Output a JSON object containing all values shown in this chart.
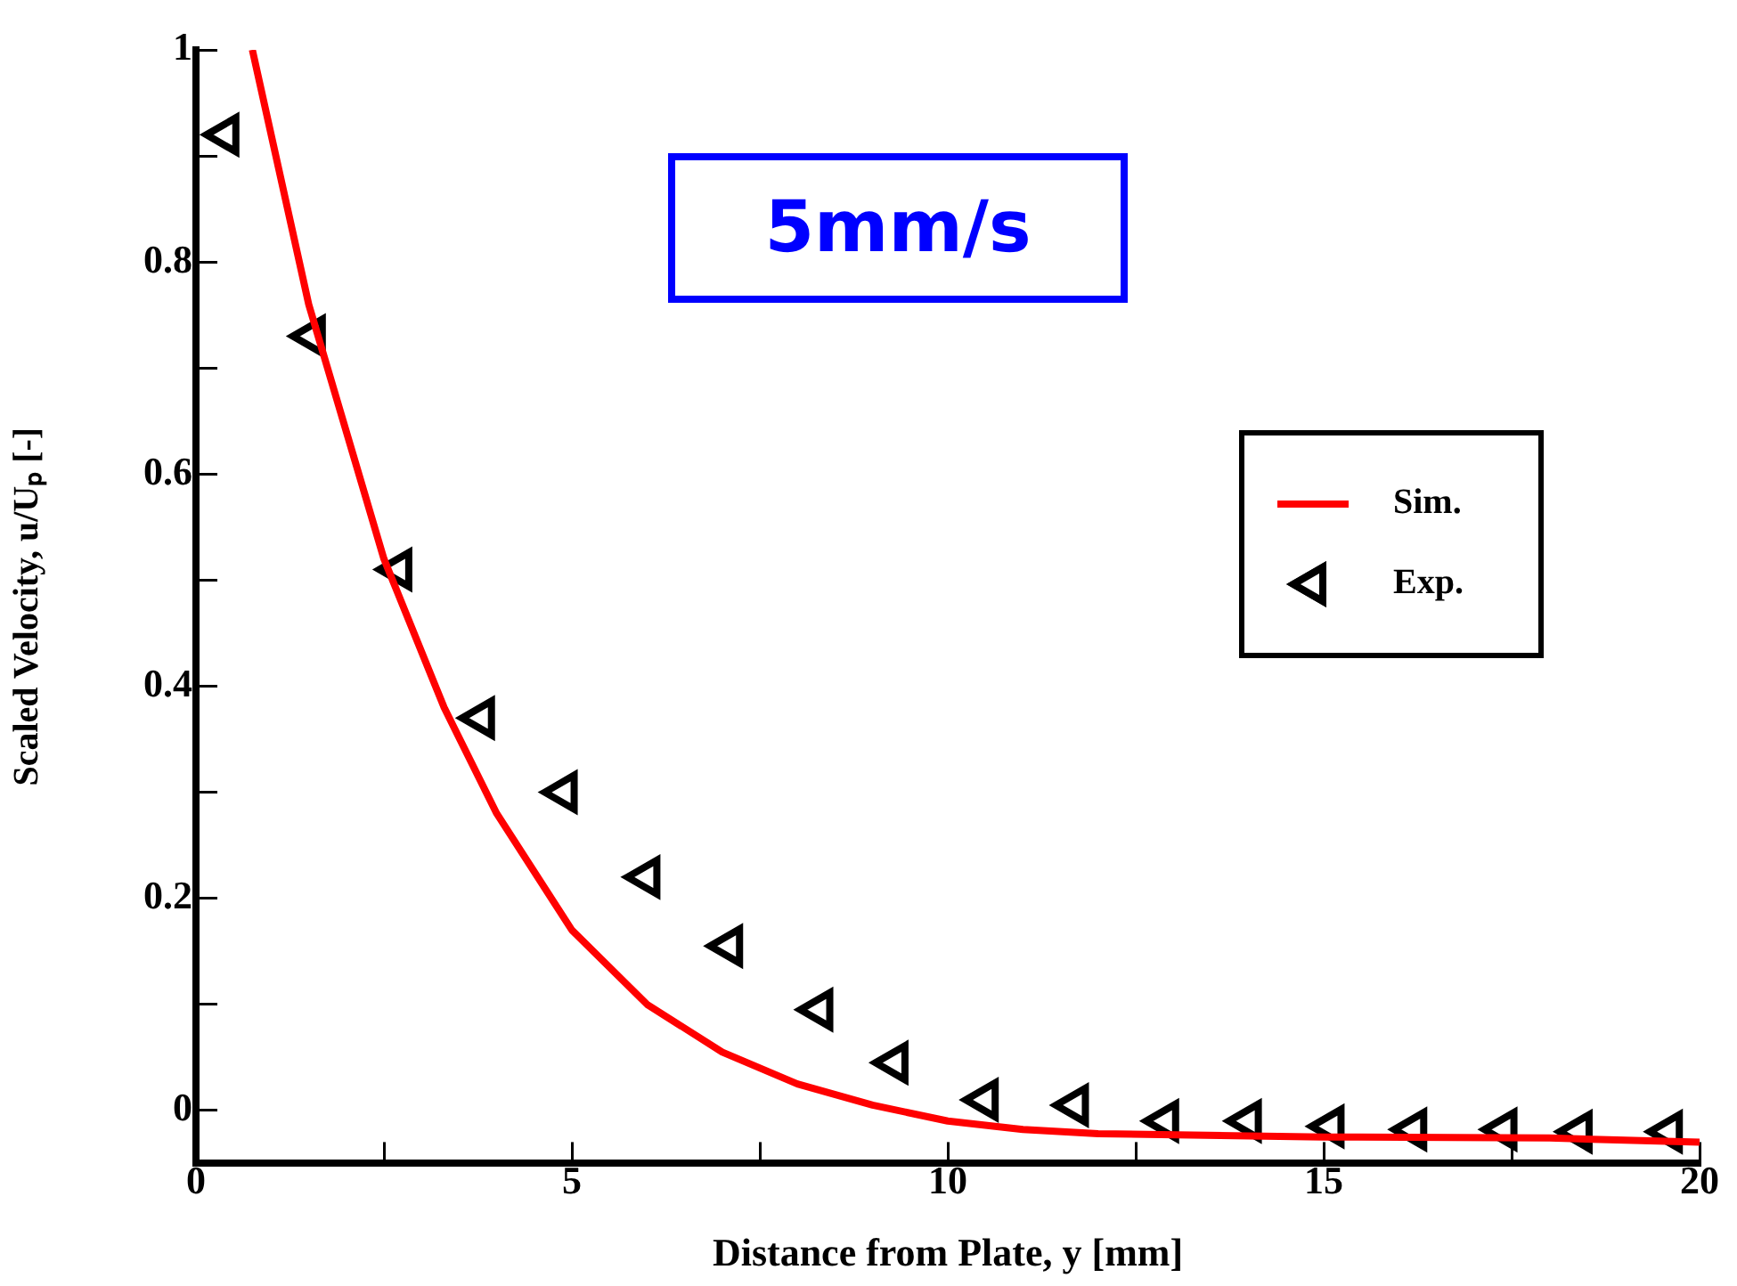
{
  "chart_data": {
    "type": "line",
    "xlabel": "Distance from Plate, y [mm]",
    "ylabel": "Scaled Velocity, u/Uₚ [-]",
    "annotations": [
      "5mm/s"
    ],
    "xlim": [
      0,
      20
    ],
    "xticks": [
      0,
      {
        "value": 2.5,
        "label": null
      },
      5,
      {
        "value": 7.5,
        "label": null
      },
      10,
      {
        "value": 12.5,
        "label": null
      },
      15,
      {
        "value": 17.5,
        "label": null
      },
      20
    ],
    "ylim": [
      -0.05,
      1
    ],
    "yticks": [
      0,
      {
        "value": 0.1,
        "label": null
      },
      0.2,
      {
        "value": 0.3,
        "label": null
      },
      0.4,
      {
        "value": 0.5,
        "label": null
      },
      0.6,
      {
        "value": 0.7,
        "label": null
      },
      0.8,
      {
        "value": 0.9,
        "label": null
      },
      1
    ],
    "grid": false,
    "legend": "right",
    "series": [
      {
        "name": "Sim.",
        "type": "line",
        "color": "#ff0000",
        "marker": "none",
        "line_style": "solid",
        "x": [
          0.75,
          1.5,
          2.5,
          3.3,
          4,
          5,
          6,
          7,
          8,
          9,
          10,
          11,
          12,
          15,
          18,
          20
        ],
        "values": [
          1.0,
          0.76,
          0.52,
          0.38,
          0.28,
          0.17,
          0.1,
          0.055,
          0.025,
          0.005,
          -0.01,
          -0.018,
          -0.022,
          -0.025,
          -0.026,
          -0.03
        ]
      },
      {
        "name": "Exp.",
        "type": "scatter",
        "color": "#000000",
        "marker": "triangle",
        "x": [
          0.4,
          1.55,
          2.7,
          3.8,
          4.9,
          6.0,
          7.1,
          8.3,
          9.3,
          10.5,
          11.7,
          12.9,
          14.0,
          15.1,
          16.2,
          17.4,
          18.4,
          19.6
        ],
        "values": [
          0.92,
          0.73,
          0.51,
          0.37,
          0.3,
          0.22,
          0.155,
          0.095,
          0.045,
          0.01,
          0.005,
          -0.01,
          -0.01,
          -0.015,
          -0.018,
          -0.018,
          -0.02,
          -0.02
        ]
      }
    ]
  }
}
